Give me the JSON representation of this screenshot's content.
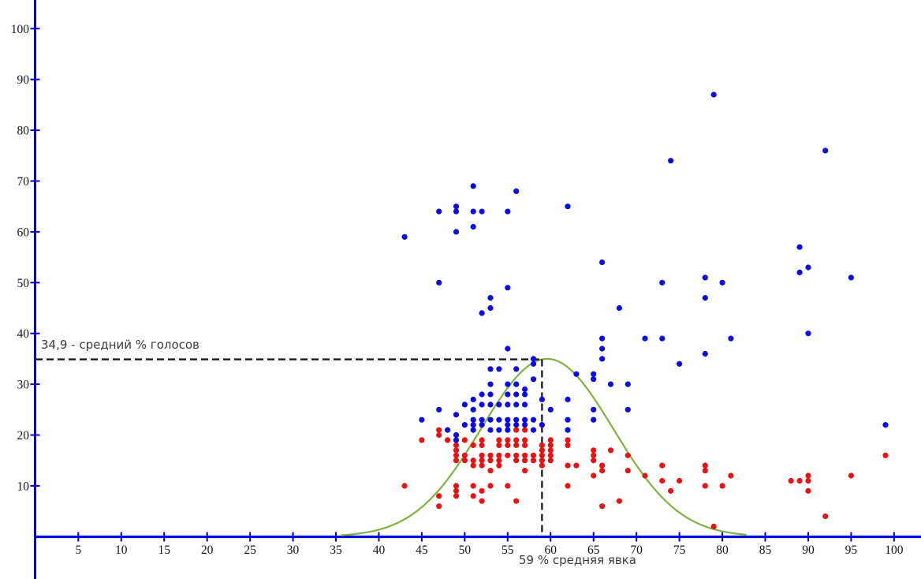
{
  "chart_data": {
    "type": "scatter",
    "title": "",
    "xlabel": "",
    "ylabel": "",
    "grid": false,
    "legend": false,
    "x_axis": {
      "min": 0,
      "max": 103,
      "ticks": [
        5,
        10,
        15,
        20,
        25,
        30,
        35,
        40,
        45,
        50,
        55,
        60,
        65,
        70,
        75,
        80,
        85,
        90,
        95,
        100
      ],
      "color": "#0000dd"
    },
    "y_axis": {
      "min": 0,
      "max": 105,
      "ticks": [
        10,
        20,
        30,
        40,
        50,
        60,
        70,
        80,
        90,
        100
      ],
      "color": "#0000dd"
    },
    "series": [
      {
        "name": "blue-points",
        "color": "#0a0ae6",
        "points": [
          [
            51,
            69
          ],
          [
            56,
            68
          ],
          [
            62,
            65
          ],
          [
            49,
            65
          ],
          [
            47,
            64
          ],
          [
            49,
            64
          ],
          [
            51,
            64
          ],
          [
            52,
            64
          ],
          [
            55,
            64
          ],
          [
            51,
            61
          ],
          [
            49,
            60
          ],
          [
            43,
            59
          ],
          [
            66,
            54
          ],
          [
            47,
            50
          ],
          [
            55,
            49
          ],
          [
            53,
            47
          ],
          [
            68,
            45
          ],
          [
            53,
            45
          ],
          [
            52,
            44
          ],
          [
            79,
            87
          ],
          [
            92,
            76
          ],
          [
            74,
            74
          ],
          [
            78,
            51
          ],
          [
            73,
            50
          ],
          [
            80,
            50
          ],
          [
            78,
            47
          ],
          [
            89,
            57
          ],
          [
            90,
            53
          ],
          [
            89,
            52
          ],
          [
            95,
            51
          ],
          [
            90,
            40
          ],
          [
            99,
            22
          ],
          [
            66,
            39
          ],
          [
            71,
            39
          ],
          [
            73,
            39
          ],
          [
            81,
            39
          ],
          [
            66,
            37
          ],
          [
            78,
            36
          ],
          [
            66,
            35
          ],
          [
            75,
            34
          ],
          [
            63,
            32
          ],
          [
            65,
            32
          ],
          [
            65,
            31
          ],
          [
            67,
            30
          ],
          [
            69,
            30
          ],
          [
            65,
            25
          ],
          [
            69,
            25
          ],
          [
            65,
            23
          ],
          [
            55,
            37
          ],
          [
            58,
            35
          ],
          [
            58,
            34
          ],
          [
            58,
            31
          ],
          [
            53,
            33
          ],
          [
            54,
            33
          ],
          [
            56,
            33
          ],
          [
            53,
            30
          ],
          [
            55,
            30
          ],
          [
            56,
            30
          ],
          [
            57,
            29
          ],
          [
            51,
            27
          ],
          [
            52,
            28
          ],
          [
            53,
            28
          ],
          [
            55,
            28
          ],
          [
            56,
            28
          ],
          [
            57,
            28
          ],
          [
            59,
            27
          ],
          [
            62,
            27
          ],
          [
            50,
            26
          ],
          [
            52,
            26
          ],
          [
            53,
            26
          ],
          [
            54,
            26
          ],
          [
            55,
            26
          ],
          [
            56,
            26
          ],
          [
            57,
            26
          ],
          [
            47,
            25
          ],
          [
            51,
            25
          ],
          [
            60,
            25
          ],
          [
            49,
            24
          ],
          [
            51,
            23
          ],
          [
            52,
            23
          ],
          [
            53,
            23
          ],
          [
            54,
            23
          ],
          [
            55,
            23
          ],
          [
            56,
            23
          ],
          [
            57,
            23
          ],
          [
            58,
            23
          ],
          [
            45,
            23
          ],
          [
            62,
            23
          ],
          [
            59,
            22
          ],
          [
            50,
            22
          ],
          [
            51,
            22
          ],
          [
            52,
            22
          ],
          [
            55,
            22
          ],
          [
            56,
            22
          ],
          [
            57,
            22
          ],
          [
            53,
            21
          ],
          [
            54,
            21
          ],
          [
            62,
            21
          ],
          [
            48,
            21
          ],
          [
            51,
            21
          ],
          [
            55,
            21
          ],
          [
            58,
            21
          ],
          [
            49,
            20
          ],
          [
            49,
            19
          ]
        ]
      },
      {
        "name": "red-points",
        "color": "#e81212",
        "points": [
          [
            47,
            21
          ],
          [
            56,
            21
          ],
          [
            57,
            21
          ],
          [
            47,
            20
          ],
          [
            45,
            19
          ],
          [
            48,
            19
          ],
          [
            50,
            19
          ],
          [
            52,
            19
          ],
          [
            54,
            19
          ],
          [
            55,
            19
          ],
          [
            56,
            19
          ],
          [
            57,
            19
          ],
          [
            60,
            19
          ],
          [
            62,
            19
          ],
          [
            49,
            18
          ],
          [
            51,
            18
          ],
          [
            52,
            18
          ],
          [
            54,
            18
          ],
          [
            55,
            18
          ],
          [
            56,
            18
          ],
          [
            57,
            18
          ],
          [
            59,
            18
          ],
          [
            60,
            18
          ],
          [
            62,
            18
          ],
          [
            49,
            17
          ],
          [
            59,
            17
          ],
          [
            60,
            17
          ],
          [
            65,
            17
          ],
          [
            67,
            17
          ],
          [
            49,
            16
          ],
          [
            50,
            16
          ],
          [
            52,
            16
          ],
          [
            53,
            16
          ],
          [
            54,
            16
          ],
          [
            55,
            16
          ],
          [
            56,
            16
          ],
          [
            57,
            16
          ],
          [
            58,
            16
          ],
          [
            59,
            16
          ],
          [
            60,
            16
          ],
          [
            65,
            16
          ],
          [
            69,
            16
          ],
          [
            99,
            16
          ],
          [
            49,
            15
          ],
          [
            50,
            15
          ],
          [
            51,
            15
          ],
          [
            52,
            15
          ],
          [
            53,
            15
          ],
          [
            54,
            15
          ],
          [
            56,
            15
          ],
          [
            57,
            15
          ],
          [
            58,
            15
          ],
          [
            59,
            15
          ],
          [
            60,
            15
          ],
          [
            65,
            15
          ],
          [
            51,
            14
          ],
          [
            52,
            14
          ],
          [
            54,
            14
          ],
          [
            59,
            14
          ],
          [
            62,
            14
          ],
          [
            63,
            14
          ],
          [
            66,
            14
          ],
          [
            73,
            14
          ],
          [
            78,
            14
          ],
          [
            53,
            13
          ],
          [
            57,
            13
          ],
          [
            66,
            13
          ],
          [
            69,
            13
          ],
          [
            78,
            13
          ],
          [
            65,
            12
          ],
          [
            71,
            12
          ],
          [
            81,
            12
          ],
          [
            90,
            12
          ],
          [
            95,
            12
          ],
          [
            73,
            11
          ],
          [
            75,
            11
          ],
          [
            88,
            11
          ],
          [
            89,
            11
          ],
          [
            90,
            11
          ],
          [
            43,
            10
          ],
          [
            49,
            10
          ],
          [
            51,
            10
          ],
          [
            53,
            10
          ],
          [
            55,
            10
          ],
          [
            62,
            10
          ],
          [
            78,
            10
          ],
          [
            80,
            10
          ],
          [
            49,
            9
          ],
          [
            52,
            9
          ],
          [
            74,
            9
          ],
          [
            90,
            9
          ],
          [
            47,
            8
          ],
          [
            49,
            8
          ],
          [
            51,
            8
          ],
          [
            52,
            7
          ],
          [
            56,
            7
          ],
          [
            68,
            7
          ],
          [
            47,
            6
          ],
          [
            66,
            6
          ],
          [
            92,
            4
          ],
          [
            79,
            2
          ]
        ]
      }
    ],
    "bell_curve": {
      "shape": "gaussian",
      "center": 59.6,
      "sigma": 7.7,
      "amplitude": 35,
      "x_from": 35.6,
      "x_to": 83.2,
      "color": "#7db440"
    },
    "mean_lines": {
      "color": "#1b1b1b",
      "votes": {
        "value": 34.9,
        "label": "34,9 - средний % голосов"
      },
      "turnout": {
        "value": 59,
        "label": "59 % средняя явка"
      }
    }
  }
}
